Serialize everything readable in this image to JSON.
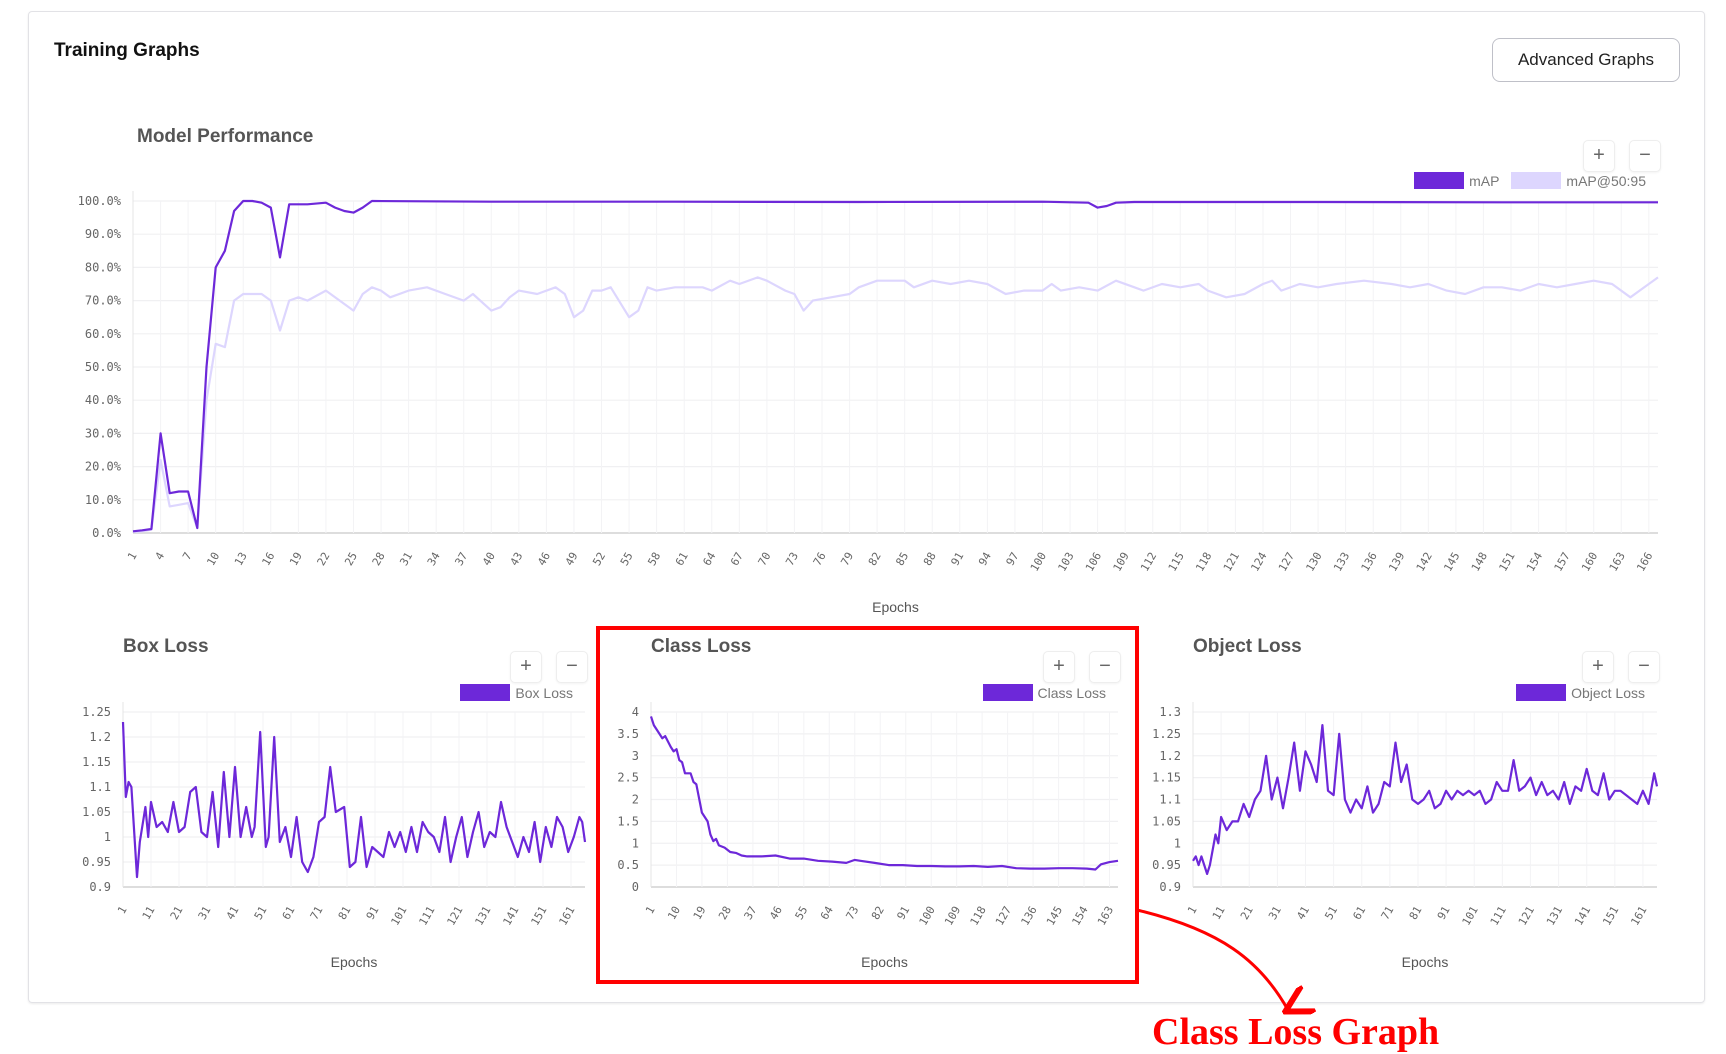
{
  "header": {
    "title": "Training Graphs",
    "advanced_button": "Advanced Graphs"
  },
  "zoom": {
    "in": "+",
    "out": "−"
  },
  "annotation": {
    "label": "Class Loss Graph",
    "color": "#ff0000"
  },
  "colors": {
    "primary": "#6d28d9",
    "secondary": "#ddd6fe"
  },
  "chart_data": [
    {
      "id": "model-performance",
      "type": "line",
      "title": "Model Performance",
      "xlabel": "Epochs",
      "ylabel": "",
      "ylim": [
        0,
        100
      ],
      "yticks": [
        "0.0%",
        "10.0%",
        "20.0%",
        "30.0%",
        "40.0%",
        "50.0%",
        "60.0%",
        "70.0%",
        "80.0%",
        "90.0%",
        "100.0%"
      ],
      "xlim": [
        1,
        167
      ],
      "xtick_start": 1,
      "xtick_step": 3,
      "grid": true,
      "legend": "top-right",
      "series": [
        {
          "name": "mAP",
          "color": "#6d28d9",
          "x": [
            1,
            2,
            3,
            4,
            5,
            6,
            7,
            8,
            9,
            10,
            11,
            12,
            13,
            14,
            15,
            16,
            17,
            18,
            19,
            20,
            22,
            23,
            24,
            25,
            26,
            27,
            40,
            60,
            80,
            100,
            105,
            106,
            107,
            108,
            110,
            130,
            150,
            167
          ],
          "values": [
            0.5,
            0.8,
            1.2,
            30,
            12,
            12.5,
            12.5,
            1.5,
            50,
            80,
            85,
            97,
            100,
            100,
            99.5,
            98,
            83,
            99,
            99,
            99,
            99.5,
            98,
            97,
            96.5,
            98,
            100,
            99.8,
            99.8,
            99.7,
            99.8,
            99.5,
            98,
            98.5,
            99.5,
            99.7,
            99.7,
            99.6,
            99.6
          ]
        },
        {
          "name": "mAP@50:95",
          "color": "#ddd6fe",
          "x": [
            1,
            2,
            3,
            4,
            5,
            6,
            7,
            8,
            9,
            10,
            11,
            12,
            13,
            14,
            15,
            16,
            17,
            18,
            19,
            20,
            22,
            25,
            26,
            27,
            28,
            29,
            31,
            33,
            35,
            37,
            38,
            40,
            41,
            42,
            43,
            45,
            47,
            48,
            49,
            50,
            51,
            52,
            53,
            55,
            56,
            57,
            58,
            60,
            63,
            64,
            66,
            67,
            69,
            70,
            72,
            73,
            74,
            75,
            77,
            79,
            80,
            82,
            85,
            86,
            88,
            90,
            92,
            94,
            96,
            98,
            100,
            101,
            102,
            104,
            106,
            108,
            110,
            111,
            113,
            115,
            117,
            118,
            120,
            122,
            124,
            125,
            126,
            128,
            130,
            132,
            135,
            138,
            140,
            142,
            144,
            146,
            148,
            150,
            152,
            154,
            156,
            158,
            160,
            162,
            164,
            165,
            166,
            167
          ],
          "values": [
            0.3,
            0.5,
            1,
            22,
            8,
            8.5,
            9,
            1.5,
            40,
            57,
            56,
            70,
            72,
            72,
            72,
            70,
            61,
            70,
            71,
            70,
            73,
            67,
            72,
            74,
            73,
            71,
            73,
            74,
            72,
            70,
            72,
            67,
            68,
            71,
            73,
            72,
            74,
            72,
            65,
            67,
            73,
            73,
            74,
            65,
            67,
            74,
            73,
            74,
            74,
            73,
            76,
            75,
            77,
            76,
            73,
            72,
            67,
            70,
            71,
            72,
            74,
            76,
            76,
            74,
            76,
            75,
            76,
            75,
            72,
            73,
            73,
            75,
            73,
            74,
            73,
            76,
            74,
            73,
            75,
            74,
            75,
            73,
            71,
            72,
            75,
            76,
            73,
            75,
            74,
            75,
            76,
            75,
            74,
            75,
            73,
            72,
            74,
            74,
            73,
            75,
            74,
            75,
            76,
            75,
            71,
            73,
            75,
            77
          ]
        }
      ]
    },
    {
      "id": "box-loss",
      "type": "line",
      "title": "Box Loss",
      "xlabel": "Epochs",
      "ylabel": "",
      "ylim": [
        0.9,
        1.25
      ],
      "yticks": [
        "0.9",
        "0.95",
        "1",
        "1.05",
        "1.1",
        "1.15",
        "1.2",
        "1.25"
      ],
      "xlim": [
        1,
        166
      ],
      "xtick_start": 1,
      "xtick_step": 10,
      "grid": true,
      "legend": "top-right",
      "series": [
        {
          "name": "Box Loss",
          "color": "#6d28d9",
          "x": [
            1,
            2,
            3,
            4,
            6,
            7,
            9,
            10,
            11,
            13,
            15,
            17,
            19,
            21,
            23,
            25,
            27,
            29,
            31,
            33,
            35,
            37,
            39,
            41,
            43,
            45,
            47,
            48,
            50,
            52,
            53,
            55,
            57,
            59,
            61,
            63,
            65,
            67,
            69,
            71,
            73,
            75,
            77,
            80,
            82,
            84,
            86,
            88,
            90,
            92,
            94,
            96,
            98,
            100,
            102,
            104,
            106,
            108,
            110,
            112,
            114,
            116,
            118,
            120,
            122,
            124,
            126,
            128,
            130,
            132,
            134,
            136,
            138,
            140,
            142,
            144,
            146,
            148,
            150,
            152,
            154,
            156,
            158,
            160,
            162,
            164,
            165,
            166
          ],
          "values": [
            1.23,
            1.08,
            1.11,
            1.1,
            0.92,
            0.99,
            1.06,
            1.0,
            1.07,
            1.02,
            1.03,
            1.01,
            1.07,
            1.01,
            1.02,
            1.09,
            1.1,
            1.01,
            1.0,
            1.09,
            0.98,
            1.13,
            1.0,
            1.14,
            1.0,
            1.06,
            1.0,
            1.02,
            1.21,
            0.98,
            1.0,
            1.2,
            0.99,
            1.02,
            0.96,
            1.04,
            0.95,
            0.93,
            0.96,
            1.03,
            1.04,
            1.14,
            1.05,
            1.06,
            0.94,
            0.95,
            1.04,
            0.94,
            0.98,
            0.97,
            0.96,
            1.01,
            0.98,
            1.01,
            0.97,
            1.02,
            0.97,
            1.03,
            1.01,
            1.0,
            0.97,
            1.04,
            0.95,
            1.0,
            1.04,
            0.96,
            1.01,
            1.05,
            0.98,
            1.01,
            1.0,
            1.07,
            1.02,
            0.99,
            0.96,
            1.0,
            0.97,
            1.03,
            0.95,
            1.02,
            0.98,
            1.04,
            1.02,
            0.97,
            1.0,
            1.04,
            1.03,
            0.99
          ]
        }
      ]
    },
    {
      "id": "class-loss",
      "type": "line",
      "title": "Class Loss",
      "xlabel": "Epochs",
      "ylabel": "",
      "ylim": [
        0,
        4
      ],
      "yticks": [
        "0",
        "0.5",
        "1",
        "1.5",
        "2",
        "2.5",
        "3",
        "3.5",
        "4"
      ],
      "xlim": [
        1,
        166
      ],
      "xtick_start": 1,
      "xtick_step": 9,
      "grid": true,
      "legend": "top-right",
      "series": [
        {
          "name": "Class Loss",
          "color": "#6d28d9",
          "x": [
            1,
            2,
            4,
            5,
            6,
            8,
            9,
            10,
            11,
            12,
            13,
            15,
            16,
            17,
            19,
            21,
            22,
            23,
            24,
            25,
            27,
            29,
            31,
            33,
            35,
            37,
            40,
            45,
            50,
            55,
            60,
            65,
            70,
            73,
            75,
            80,
            85,
            90,
            95,
            100,
            105,
            110,
            115,
            120,
            125,
            130,
            135,
            140,
            145,
            150,
            155,
            158,
            160,
            163,
            166
          ],
          "values": [
            3.9,
            3.7,
            3.5,
            3.4,
            3.45,
            3.2,
            3.1,
            3.15,
            2.9,
            2.85,
            2.6,
            2.6,
            2.4,
            2.35,
            1.7,
            1.5,
            1.2,
            1.05,
            1.1,
            0.95,
            0.9,
            0.8,
            0.78,
            0.72,
            0.7,
            0.7,
            0.7,
            0.72,
            0.65,
            0.65,
            0.6,
            0.58,
            0.55,
            0.62,
            0.6,
            0.55,
            0.5,
            0.5,
            0.48,
            0.48,
            0.47,
            0.47,
            0.48,
            0.46,
            0.48,
            0.43,
            0.42,
            0.42,
            0.43,
            0.43,
            0.42,
            0.4,
            0.52,
            0.57,
            0.6
          ]
        }
      ]
    },
    {
      "id": "object-loss",
      "type": "line",
      "title": "Object Loss",
      "xlabel": "Epochs",
      "ylabel": "",
      "ylim": [
        0.9,
        1.3
      ],
      "yticks": [
        "0.9",
        "0.95",
        "1",
        "1.05",
        "1.1",
        "1.15",
        "1.2",
        "1.25",
        "1.3"
      ],
      "xlim": [
        1,
        166
      ],
      "xtick_start": 1,
      "xtick_step": 10,
      "grid": true,
      "legend": "top-right",
      "series": [
        {
          "name": "Object Loss",
          "color": "#6d28d9",
          "x": [
            1,
            2,
            3,
            4,
            6,
            7,
            9,
            10,
            11,
            13,
            15,
            17,
            19,
            21,
            23,
            25,
            27,
            29,
            31,
            33,
            35,
            37,
            39,
            41,
            43,
            45,
            47,
            49,
            51,
            53,
            55,
            57,
            59,
            61,
            63,
            65,
            67,
            69,
            71,
            73,
            75,
            77,
            79,
            81,
            83,
            85,
            87,
            89,
            91,
            93,
            95,
            97,
            99,
            101,
            103,
            105,
            107,
            109,
            111,
            113,
            115,
            117,
            119,
            121,
            123,
            125,
            127,
            129,
            131,
            133,
            135,
            137,
            139,
            141,
            143,
            145,
            147,
            149,
            151,
            153,
            155,
            157,
            159,
            161,
            163,
            165,
            166
          ],
          "values": [
            0.96,
            0.97,
            0.95,
            0.97,
            0.93,
            0.95,
            1.02,
            1.0,
            1.06,
            1.03,
            1.05,
            1.05,
            1.09,
            1.06,
            1.1,
            1.12,
            1.2,
            1.1,
            1.15,
            1.08,
            1.15,
            1.23,
            1.12,
            1.21,
            1.18,
            1.14,
            1.27,
            1.12,
            1.11,
            1.25,
            1.1,
            1.07,
            1.1,
            1.08,
            1.13,
            1.07,
            1.09,
            1.14,
            1.13,
            1.23,
            1.14,
            1.18,
            1.1,
            1.09,
            1.1,
            1.12,
            1.08,
            1.09,
            1.12,
            1.1,
            1.12,
            1.11,
            1.12,
            1.11,
            1.12,
            1.09,
            1.1,
            1.14,
            1.12,
            1.12,
            1.19,
            1.12,
            1.13,
            1.15,
            1.11,
            1.14,
            1.11,
            1.12,
            1.1,
            1.14,
            1.09,
            1.13,
            1.12,
            1.17,
            1.12,
            1.11,
            1.16,
            1.1,
            1.12,
            1.12,
            1.11,
            1.1,
            1.09,
            1.12,
            1.09,
            1.16,
            1.13
          ]
        }
      ]
    }
  ]
}
